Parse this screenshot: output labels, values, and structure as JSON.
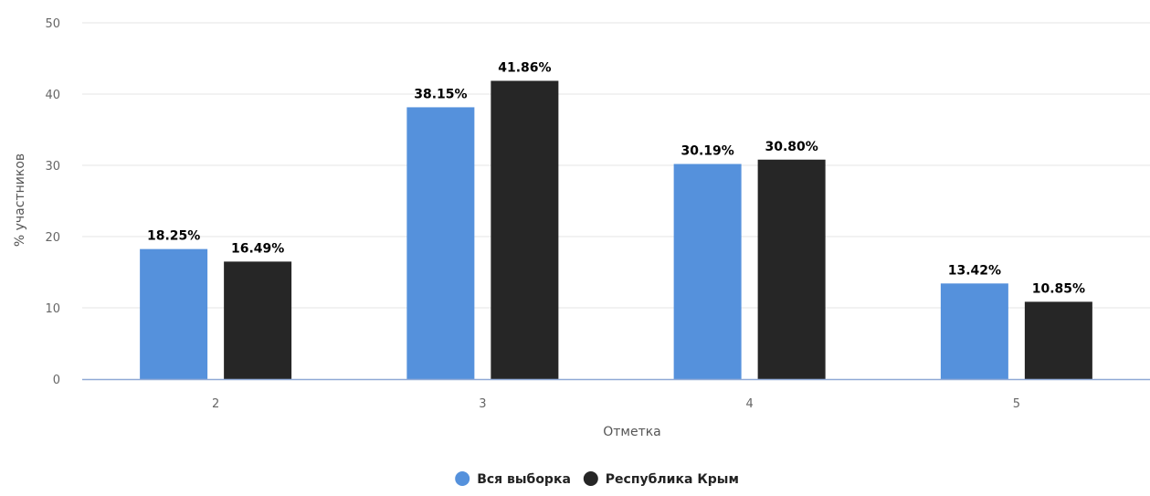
{
  "chart_data": {
    "type": "bar",
    "title": "",
    "xlabel": "Отметка",
    "ylabel": "% участников",
    "categories": [
      "2",
      "3",
      "4",
      "5"
    ],
    "ylim": [
      0,
      50
    ],
    "yticks": [
      0,
      10,
      20,
      30,
      40,
      50
    ],
    "grid": true,
    "legend_position": "bottom-center",
    "series": [
      {
        "name": "Вся выборка",
        "color": "#5591dc",
        "values": [
          18.25,
          38.15,
          30.19,
          13.42
        ],
        "labels": [
          "18.25%",
          "38.15%",
          "30.19%",
          "13.42%"
        ]
      },
      {
        "name": "Республика Крым",
        "color": "#262626",
        "values": [
          16.49,
          41.86,
          30.8,
          10.85
        ],
        "labels": [
          "16.49%",
          "41.86%",
          "30.80%",
          "10.85%"
        ]
      }
    ]
  }
}
